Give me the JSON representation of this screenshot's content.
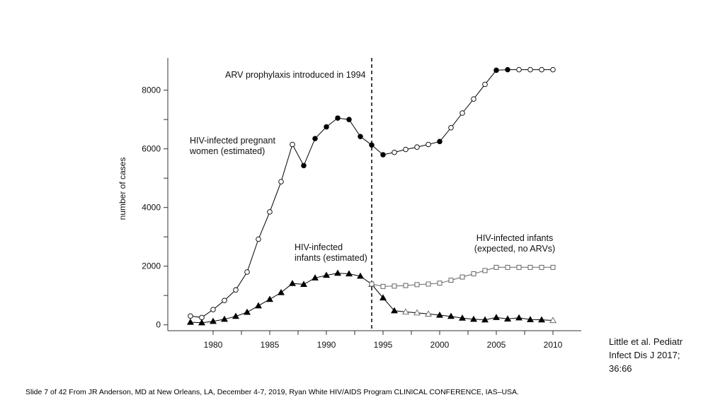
{
  "chart_data": {
    "type": "line",
    "title": "",
    "xlabel": "",
    "ylabel": "number of cases",
    "xlim": [
      1976.0,
      2012.5
    ],
    "ylim": [
      -200,
      9100
    ],
    "xticks": [
      1980,
      1985,
      1990,
      1995,
      2000,
      2005,
      2010
    ],
    "yticks": [
      0,
      2000,
      4000,
      6000,
      8000
    ],
    "grid": false,
    "legend": "none",
    "vline": {
      "x": 1994,
      "style": "dashed"
    },
    "annotations": [
      {
        "text": "ARV prophylaxis introduced in 1994"
      },
      {
        "text": "HIV-infected pregnant",
        "text2": "women (estimated)"
      },
      {
        "text": "HIV-infected",
        "text2": "infants (estimated)"
      },
      {
        "text": "HIV-infected infants",
        "text2": "(expected, no ARVs)"
      }
    ],
    "series": [
      {
        "marker": "circle",
        "color": "#000000",
        "points": [
          {
            "x": 1978,
            "y": 300,
            "filled": false
          },
          {
            "x": 1979,
            "y": 250,
            "filled": false
          },
          {
            "x": 1980,
            "y": 520,
            "filled": false
          },
          {
            "x": 1981,
            "y": 830,
            "filled": false
          },
          {
            "x": 1982,
            "y": 1190,
            "filled": false
          },
          {
            "x": 1983,
            "y": 1800,
            "filled": false
          },
          {
            "x": 1984,
            "y": 2920,
            "filled": false
          },
          {
            "x": 1985,
            "y": 3850,
            "filled": false
          },
          {
            "x": 1986,
            "y": 4880,
            "filled": false
          },
          {
            "x": 1987,
            "y": 6150,
            "filled": false
          },
          {
            "x": 1988,
            "y": 5430,
            "filled": true
          },
          {
            "x": 1989,
            "y": 6350,
            "filled": true
          },
          {
            "x": 1990,
            "y": 6750,
            "filled": true
          },
          {
            "x": 1991,
            "y": 7050,
            "filled": true
          },
          {
            "x": 1992,
            "y": 7000,
            "filled": true
          },
          {
            "x": 1993,
            "y": 6420,
            "filled": true
          },
          {
            "x": 1994,
            "y": 6130,
            "filled": true
          },
          {
            "x": 1995,
            "y": 5800,
            "filled": true
          },
          {
            "x": 1996,
            "y": 5880,
            "filled": false
          },
          {
            "x": 1997,
            "y": 5980,
            "filled": false
          },
          {
            "x": 1998,
            "y": 6060,
            "filled": false
          },
          {
            "x": 1999,
            "y": 6150,
            "filled": false
          },
          {
            "x": 2000,
            "y": 6250,
            "filled": true
          },
          {
            "x": 2001,
            "y": 6720,
            "filled": false
          },
          {
            "x": 2002,
            "y": 7220,
            "filled": false
          },
          {
            "x": 2003,
            "y": 7700,
            "filled": false
          },
          {
            "x": 2004,
            "y": 8200,
            "filled": false
          },
          {
            "x": 2005,
            "y": 8680,
            "filled": true
          },
          {
            "x": 2006,
            "y": 8700,
            "filled": true
          },
          {
            "x": 2007,
            "y": 8700,
            "filled": false
          },
          {
            "x": 2008,
            "y": 8700,
            "filled": false
          },
          {
            "x": 2009,
            "y": 8700,
            "filled": false
          },
          {
            "x": 2010,
            "y": 8700,
            "filled": false
          }
        ]
      },
      {
        "marker": "triangle",
        "color": "#000000",
        "points": [
          {
            "x": 1978,
            "y": 90,
            "filled": true
          },
          {
            "x": 1979,
            "y": 70,
            "filled": true
          },
          {
            "x": 1980,
            "y": 120,
            "filled": true
          },
          {
            "x": 1981,
            "y": 190,
            "filled": true
          },
          {
            "x": 1982,
            "y": 290,
            "filled": true
          },
          {
            "x": 1983,
            "y": 430,
            "filled": true
          },
          {
            "x": 1984,
            "y": 650,
            "filled": true
          },
          {
            "x": 1985,
            "y": 870,
            "filled": true
          },
          {
            "x": 1986,
            "y": 1100,
            "filled": true
          },
          {
            "x": 1987,
            "y": 1410,
            "filled": true
          },
          {
            "x": 1988,
            "y": 1380,
            "filled": true
          },
          {
            "x": 1989,
            "y": 1600,
            "filled": true
          },
          {
            "x": 1990,
            "y": 1690,
            "filled": true
          },
          {
            "x": 1991,
            "y": 1760,
            "filled": true
          },
          {
            "x": 1992,
            "y": 1740,
            "filled": true
          },
          {
            "x": 1993,
            "y": 1660,
            "filled": true
          },
          {
            "x": 1994,
            "y": 1380,
            "filled": false
          },
          {
            "x": 1995,
            "y": 920,
            "filled": true
          },
          {
            "x": 1996,
            "y": 480,
            "filled": true
          },
          {
            "x": 1997,
            "y": 440,
            "filled": false
          },
          {
            "x": 1998,
            "y": 410,
            "filled": false
          },
          {
            "x": 1999,
            "y": 370,
            "filled": false
          },
          {
            "x": 2000,
            "y": 330,
            "filled": true
          },
          {
            "x": 2001,
            "y": 290,
            "filled": true
          },
          {
            "x": 2002,
            "y": 230,
            "filled": true
          },
          {
            "x": 2003,
            "y": 190,
            "filled": true
          },
          {
            "x": 2004,
            "y": 170,
            "filled": true
          },
          {
            "x": 2005,
            "y": 250,
            "filled": true
          },
          {
            "x": 2006,
            "y": 200,
            "filled": true
          },
          {
            "x": 2007,
            "y": 240,
            "filled": true
          },
          {
            "x": 2008,
            "y": 180,
            "filled": true
          },
          {
            "x": 2009,
            "y": 170,
            "filled": true
          },
          {
            "x": 2010,
            "y": 150,
            "filled": false
          }
        ]
      },
      {
        "marker": "square",
        "color": "#666666",
        "points": [
          {
            "x": 1994,
            "y": 1390,
            "filled": false
          },
          {
            "x": 1995,
            "y": 1310,
            "filled": false
          },
          {
            "x": 1996,
            "y": 1320,
            "filled": false
          },
          {
            "x": 1997,
            "y": 1340,
            "filled": false
          },
          {
            "x": 1998,
            "y": 1370,
            "filled": false
          },
          {
            "x": 1999,
            "y": 1390,
            "filled": false
          },
          {
            "x": 2000,
            "y": 1420,
            "filled": false
          },
          {
            "x": 2001,
            "y": 1520,
            "filled": false
          },
          {
            "x": 2002,
            "y": 1630,
            "filled": false
          },
          {
            "x": 2003,
            "y": 1740,
            "filled": false
          },
          {
            "x": 2004,
            "y": 1850,
            "filled": false
          },
          {
            "x": 2005,
            "y": 1960,
            "filled": false
          },
          {
            "x": 2006,
            "y": 1960,
            "filled": false
          },
          {
            "x": 2007,
            "y": 1960,
            "filled": false
          },
          {
            "x": 2008,
            "y": 1960,
            "filled": false
          },
          {
            "x": 2009,
            "y": 1960,
            "filled": false
          },
          {
            "x": 2010,
            "y": 1960,
            "filled": false
          }
        ]
      }
    ]
  },
  "citation": {
    "line1": "Little et al. Pediatr",
    "line2": "Infect Dis J 2017;",
    "line3": "36:66"
  },
  "footer": {
    "text": "Slide 7 of 42 From JR Anderson, MD at New Orleans, LA, December 4-7, 2019, Ryan White HIV/AIDS Program CLINICAL CONFERENCE, IAS–USA."
  }
}
